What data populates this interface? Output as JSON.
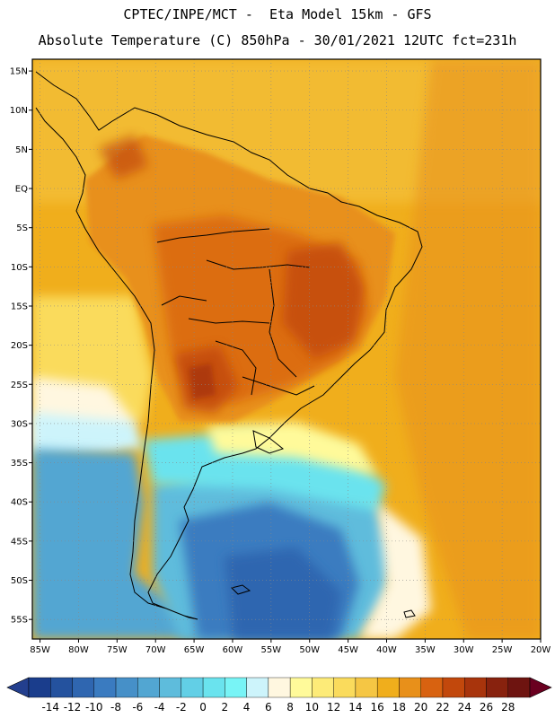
{
  "header": {
    "line1": "CPTEC/INPE/MCT -  Eta Model 15km - GFS",
    "line2": "Absolute Temperature (C) 850hPa - 30/01/2021 12UTC fct=231h"
  },
  "axes": {
    "lat_labels": [
      "15N",
      "10N",
      "5N",
      "EQ",
      "5S",
      "10S",
      "15S",
      "20S",
      "25S",
      "30S",
      "35S",
      "40S",
      "45S",
      "50S",
      "55S"
    ],
    "lon_labels": [
      "85W",
      "80W",
      "75W",
      "70W",
      "65W",
      "60W",
      "55W",
      "50W",
      "45W",
      "40W",
      "35W",
      "30W",
      "25W",
      "20W"
    ],
    "lat_range": [
      -57.5,
      16.5
    ],
    "lon_range": [
      -86,
      -20
    ],
    "grid": "dotted"
  },
  "colorbar": {
    "labels": [
      "-14",
      "-12",
      "-10",
      "-8",
      "-6",
      "-4",
      "-2",
      "0",
      "2",
      "4",
      "6",
      "8",
      "10",
      "12",
      "14",
      "16",
      "18",
      "20",
      "22",
      "24",
      "26",
      "28"
    ],
    "colors": [
      "#1a3d8c",
      "#24529e",
      "#2f66b0",
      "#3a7bc0",
      "#4690c8",
      "#52a6d2",
      "#5ebcdc",
      "#62cfe6",
      "#6ae3ee",
      "#78f4f6",
      "#cdf4fb",
      "#fff7e0",
      "#fffa9a",
      "#fdeb78",
      "#fadb5c",
      "#f5c644",
      "#f0ae1c",
      "#e8901a",
      "#d86210",
      "#c2480c",
      "#a8340c",
      "#88220e",
      "#6e1410"
    ],
    "arrow_left": "#233f8e",
    "arrow_right": "#6a0020"
  },
  "colors": {
    "ocean_south": "#3fa6d6",
    "ocean_deep": "#2a6fb8",
    "warm": "#f0ae1c",
    "hot": "#d86210",
    "hottest": "#a8340c",
    "mild": "#fadb5c",
    "cool": "#cdf4fb"
  }
}
